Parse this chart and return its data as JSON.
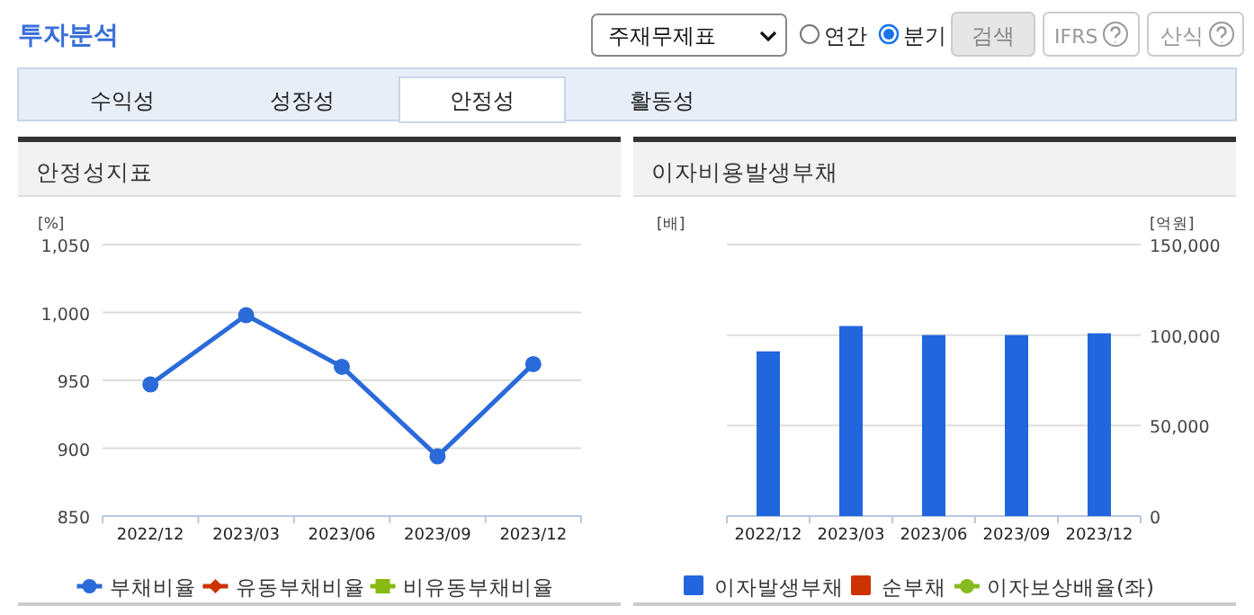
{
  "chart_data": [
    {
      "type": "other",
      "title": "투자분석",
      "annotations": [
        "주재무제표",
        "연간",
        "분기",
        "검색",
        "IFRS",
        "산식",
        "수익성",
        "성장성",
        "안정성",
        "활동성"
      ]
    },
    {
      "type": "line",
      "title": "안정성지표",
      "ylabel": "[%]",
      "categories": [
        "2022/12",
        "2023/03",
        "2023/06",
        "2023/09",
        "2023/12"
      ],
      "series": [
        {
          "name": "부채비율",
          "color": "#2a6ad9",
          "marker": "circle",
          "values": [
            947,
            998,
            960,
            894,
            962
          ]
        },
        {
          "name": "유동부채비율",
          "color": "#cc3300",
          "marker": "diamond",
          "values": [
            null,
            null,
            null,
            null,
            null
          ]
        },
        {
          "name": "비유동부채비율",
          "color": "#88bb11",
          "marker": "square",
          "values": [
            null,
            null,
            null,
            null,
            null
          ]
        }
      ],
      "ylim": [
        850,
        1050
      ],
      "yticks": [
        850,
        900,
        950,
        {
          "value": 1000,
          "label": "1,000"
        },
        {
          "value": 1050,
          "label": "1,050"
        }
      ],
      "grid": "y",
      "legend": "bottom"
    },
    {
      "type": "bar",
      "title": "이자비용발생부채",
      "ylabel": "[배]",
      "y2label": "[억원]",
      "categories": [
        "2022/12",
        "2023/03",
        "2023/06",
        "2023/09",
        "2023/12"
      ],
      "series": [
        {
          "name": "이자발생부채",
          "type": "bar",
          "axis": "y2",
          "color": "#2266dd",
          "values": [
            91000,
            105000,
            100000,
            100000,
            101000
          ]
        },
        {
          "name": "순부채",
          "type": "bar",
          "axis": "y2",
          "color": "#cc3300",
          "values": [
            null,
            null,
            null,
            null,
            null
          ]
        },
        {
          "name": "이자보상배율(좌)",
          "type": "line",
          "axis": "y",
          "marker": "circle",
          "color": "#88bb22",
          "values": [
            null,
            null,
            null,
            null,
            null
          ]
        }
      ],
      "y2lim": [
        0,
        150000
      ],
      "y2ticks": [
        0,
        {
          "value": 50000,
          "label": "50,000"
        },
        {
          "value": 100000,
          "label": "100,000"
        },
        {
          "value": 150000,
          "label": "150,000"
        }
      ],
      "grid": "y",
      "legend": "bottom"
    }
  ]
}
